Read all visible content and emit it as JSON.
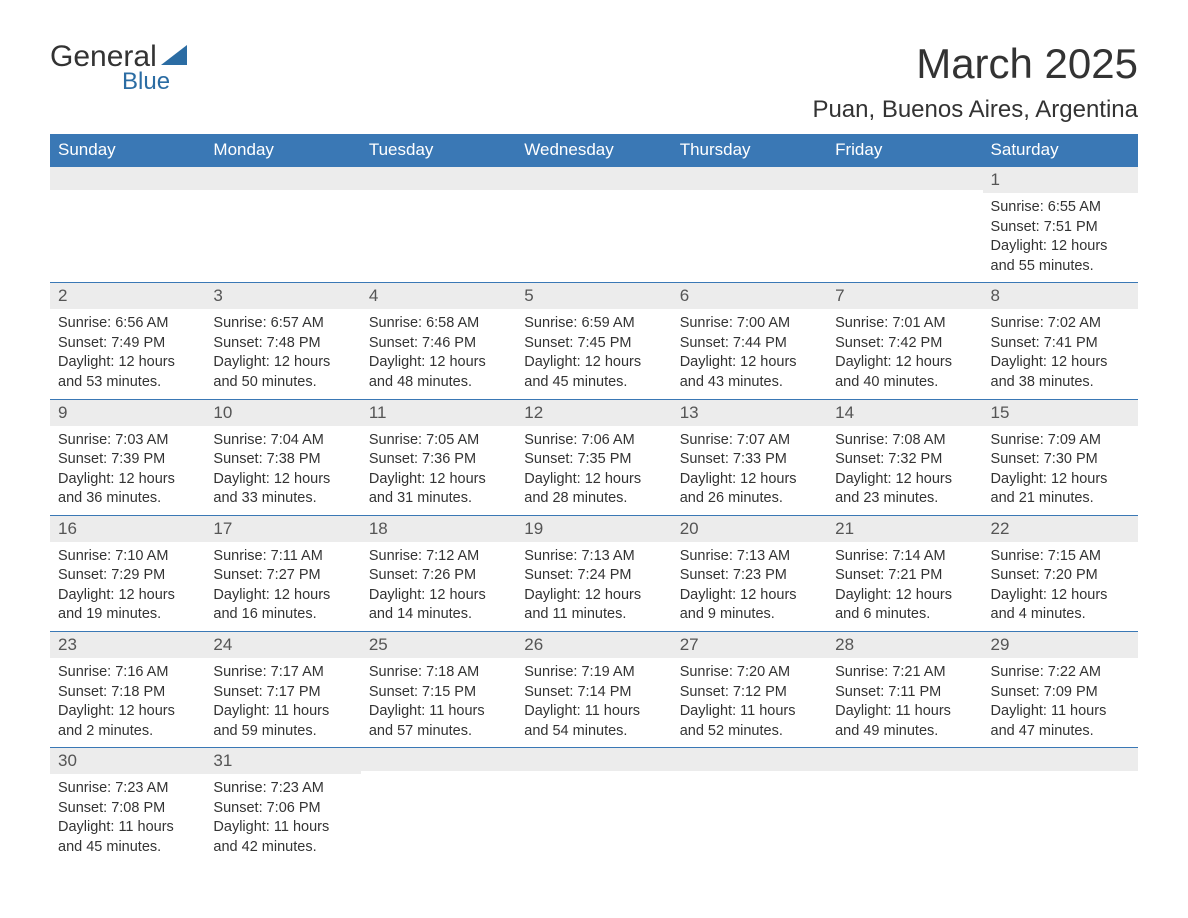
{
  "logo": {
    "general": "General",
    "blue": "Blue"
  },
  "title": {
    "month": "March 2025",
    "location": "Puan, Buenos Aires, Argentina"
  },
  "colors": {
    "header_bg": "#3a78b5",
    "header_text": "#ffffff",
    "daynum_bg": "#ececec",
    "daynum_text": "#555555",
    "body_text": "#333333",
    "border": "#3a78b5",
    "logo_accent": "#2b6ca3"
  },
  "typography": {
    "month_title_fontsize": 42,
    "location_fontsize": 24,
    "header_fontsize": 17,
    "daynum_fontsize": 17,
    "body_fontsize": 14.5,
    "logo_general_fontsize": 30,
    "logo_blue_fontsize": 24
  },
  "weekdays": [
    "Sunday",
    "Monday",
    "Tuesday",
    "Wednesday",
    "Thursday",
    "Friday",
    "Saturday"
  ],
  "labels": {
    "sunrise": "Sunrise:",
    "sunset": "Sunset:",
    "daylight": "Daylight:"
  },
  "blank_leading": 6,
  "days": [
    {
      "n": "1",
      "sunrise": "6:55 AM",
      "sunset": "7:51 PM",
      "daylight": "12 hours and 55 minutes."
    },
    {
      "n": "2",
      "sunrise": "6:56 AM",
      "sunset": "7:49 PM",
      "daylight": "12 hours and 53 minutes."
    },
    {
      "n": "3",
      "sunrise": "6:57 AM",
      "sunset": "7:48 PM",
      "daylight": "12 hours and 50 minutes."
    },
    {
      "n": "4",
      "sunrise": "6:58 AM",
      "sunset": "7:46 PM",
      "daylight": "12 hours and 48 minutes."
    },
    {
      "n": "5",
      "sunrise": "6:59 AM",
      "sunset": "7:45 PM",
      "daylight": "12 hours and 45 minutes."
    },
    {
      "n": "6",
      "sunrise": "7:00 AM",
      "sunset": "7:44 PM",
      "daylight": "12 hours and 43 minutes."
    },
    {
      "n": "7",
      "sunrise": "7:01 AM",
      "sunset": "7:42 PM",
      "daylight": "12 hours and 40 minutes."
    },
    {
      "n": "8",
      "sunrise": "7:02 AM",
      "sunset": "7:41 PM",
      "daylight": "12 hours and 38 minutes."
    },
    {
      "n": "9",
      "sunrise": "7:03 AM",
      "sunset": "7:39 PM",
      "daylight": "12 hours and 36 minutes."
    },
    {
      "n": "10",
      "sunrise": "7:04 AM",
      "sunset": "7:38 PM",
      "daylight": "12 hours and 33 minutes."
    },
    {
      "n": "11",
      "sunrise": "7:05 AM",
      "sunset": "7:36 PM",
      "daylight": "12 hours and 31 minutes."
    },
    {
      "n": "12",
      "sunrise": "7:06 AM",
      "sunset": "7:35 PM",
      "daylight": "12 hours and 28 minutes."
    },
    {
      "n": "13",
      "sunrise": "7:07 AM",
      "sunset": "7:33 PM",
      "daylight": "12 hours and 26 minutes."
    },
    {
      "n": "14",
      "sunrise": "7:08 AM",
      "sunset": "7:32 PM",
      "daylight": "12 hours and 23 minutes."
    },
    {
      "n": "15",
      "sunrise": "7:09 AM",
      "sunset": "7:30 PM",
      "daylight": "12 hours and 21 minutes."
    },
    {
      "n": "16",
      "sunrise": "7:10 AM",
      "sunset": "7:29 PM",
      "daylight": "12 hours and 19 minutes."
    },
    {
      "n": "17",
      "sunrise": "7:11 AM",
      "sunset": "7:27 PM",
      "daylight": "12 hours and 16 minutes."
    },
    {
      "n": "18",
      "sunrise": "7:12 AM",
      "sunset": "7:26 PM",
      "daylight": "12 hours and 14 minutes."
    },
    {
      "n": "19",
      "sunrise": "7:13 AM",
      "sunset": "7:24 PM",
      "daylight": "12 hours and 11 minutes."
    },
    {
      "n": "20",
      "sunrise": "7:13 AM",
      "sunset": "7:23 PM",
      "daylight": "12 hours and 9 minutes."
    },
    {
      "n": "21",
      "sunrise": "7:14 AM",
      "sunset": "7:21 PM",
      "daylight": "12 hours and 6 minutes."
    },
    {
      "n": "22",
      "sunrise": "7:15 AM",
      "sunset": "7:20 PM",
      "daylight": "12 hours and 4 minutes."
    },
    {
      "n": "23",
      "sunrise": "7:16 AM",
      "sunset": "7:18 PM",
      "daylight": "12 hours and 2 minutes."
    },
    {
      "n": "24",
      "sunrise": "7:17 AM",
      "sunset": "7:17 PM",
      "daylight": "11 hours and 59 minutes."
    },
    {
      "n": "25",
      "sunrise": "7:18 AM",
      "sunset": "7:15 PM",
      "daylight": "11 hours and 57 minutes."
    },
    {
      "n": "26",
      "sunrise": "7:19 AM",
      "sunset": "7:14 PM",
      "daylight": "11 hours and 54 minutes."
    },
    {
      "n": "27",
      "sunrise": "7:20 AM",
      "sunset": "7:12 PM",
      "daylight": "11 hours and 52 minutes."
    },
    {
      "n": "28",
      "sunrise": "7:21 AM",
      "sunset": "7:11 PM",
      "daylight": "11 hours and 49 minutes."
    },
    {
      "n": "29",
      "sunrise": "7:22 AM",
      "sunset": "7:09 PM",
      "daylight": "11 hours and 47 minutes."
    },
    {
      "n": "30",
      "sunrise": "7:23 AM",
      "sunset": "7:08 PM",
      "daylight": "11 hours and 45 minutes."
    },
    {
      "n": "31",
      "sunrise": "7:23 AM",
      "sunset": "7:06 PM",
      "daylight": "11 hours and 42 minutes."
    }
  ]
}
